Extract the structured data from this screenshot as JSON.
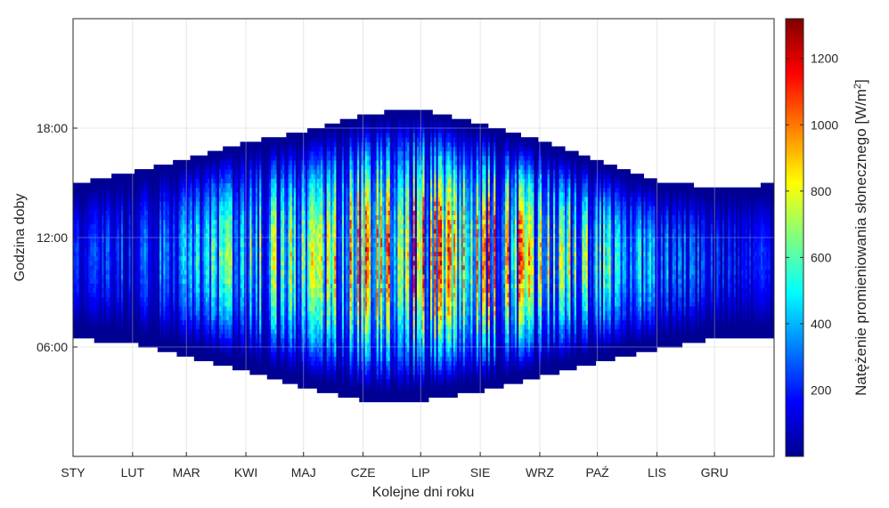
{
  "chart_data": {
    "type": "heatmap",
    "title": "",
    "xlabel": "Kolejne dni roku",
    "ylabel": "Godzina doby",
    "colorbar": {
      "label_main": "Natężenie promieniowania słonecznego [W/m",
      "label_sup": "2",
      "label_end": "]",
      "range": [
        0,
        1320
      ],
      "ticks": [
        {
          "value": 200,
          "label": "200"
        },
        {
          "value": 400,
          "label": "400"
        },
        {
          "value": 600,
          "label": "600"
        },
        {
          "value": 800,
          "label": "800"
        },
        {
          "value": 1000,
          "label": "1000"
        },
        {
          "value": 1200,
          "label": "1200"
        }
      ],
      "colormap": "jet"
    },
    "x_ticks": [
      {
        "day": 1,
        "label": "STY"
      },
      {
        "day": 32,
        "label": "LUT"
      },
      {
        "day": 60,
        "label": "MAR"
      },
      {
        "day": 91,
        "label": "KWI"
      },
      {
        "day": 121,
        "label": "MAJ"
      },
      {
        "day": 152,
        "label": "CZE"
      },
      {
        "day": 182,
        "label": "LIP"
      },
      {
        "day": 213,
        "label": "SIE"
      },
      {
        "day": 244,
        "label": "WRZ"
      },
      {
        "day": 274,
        "label": "PAŹ"
      },
      {
        "day": 305,
        "label": "LIS"
      },
      {
        "day": 335,
        "label": "GRU"
      }
    ],
    "y_ticks": [
      {
        "hour": 6,
        "label": "06:00"
      },
      {
        "hour": 12,
        "label": "12:00"
      },
      {
        "hour": 18,
        "label": "18:00"
      }
    ],
    "xlim": [
      1,
      366
    ],
    "ylim": [
      0,
      24
    ],
    "grid": true,
    "daylight_envelope": {
      "day": [
        1,
        32,
        60,
        91,
        121,
        152,
        172,
        182,
        213,
        244,
        274,
        305,
        335,
        366
      ],
      "sunrise_hour": [
        6.6,
        6.3,
        5.6,
        4.8,
        3.9,
        3.2,
        3.1,
        3.2,
        3.7,
        4.5,
        5.3,
        6.0,
        6.6,
        6.6
      ],
      "sunset_hour": [
        14.8,
        15.5,
        16.2,
        17.1,
        17.7,
        18.6,
        18.9,
        18.9,
        18.1,
        17.2,
        16.1,
        15.0,
        14.6,
        14.8
      ]
    },
    "peak_irradiance_by_month": {
      "months": [
        "STY",
        "LUT",
        "MAR",
        "KWI",
        "MAJ",
        "CZE",
        "LIP",
        "SIE",
        "WRZ",
        "PAŹ",
        "LIS",
        "GRU"
      ],
      "values": [
        280,
        420,
        640,
        880,
        1050,
        1120,
        1150,
        1080,
        880,
        620,
        380,
        240
      ]
    }
  }
}
